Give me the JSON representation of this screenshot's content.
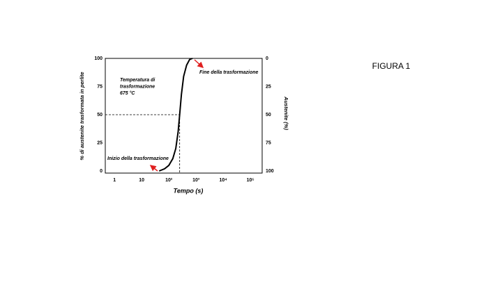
{
  "figure_label": "FIGURA 1",
  "chart_data": {
    "type": "line",
    "x_label": "Tempo (s)",
    "y_label": "% di austenite trasformata in perlite",
    "y2_label": "Austenite (%)",
    "x_scale": "log",
    "x": [
      44,
      70,
      100,
      140,
      180,
      220,
      250,
      290,
      350,
      450,
      580,
      740
    ],
    "series": [
      {
        "color": "#000000",
        "values": [
          0,
          2,
          5,
          11,
          20,
          35,
          50,
          68,
          84,
          94,
          99,
          100
        ]
      }
    ],
    "xlim": [
      0.46,
      270000
    ],
    "xticks": [
      1,
      10,
      {
        "value": 100,
        "label": "10²"
      },
      {
        "value": 1000,
        "label": "10³"
      },
      {
        "value": 10000,
        "label": "10⁴"
      },
      {
        "value": 100000,
        "label": "10⁵"
      }
    ],
    "ylim": [
      0,
      100
    ],
    "yticks": [
      0,
      25,
      50,
      75,
      100
    ],
    "y2lim": [
      100,
      0
    ],
    "y2ticks": [
      0,
      25,
      50,
      75,
      100
    ],
    "guide": {
      "x": 250,
      "y": 50
    },
    "annotations": {
      "temperature": [
        "Temperatura di",
        "trasformazione",
        "675 °C"
      ],
      "start": "Inizio della trasformazione",
      "end": "Fine della trasformazione"
    }
  }
}
